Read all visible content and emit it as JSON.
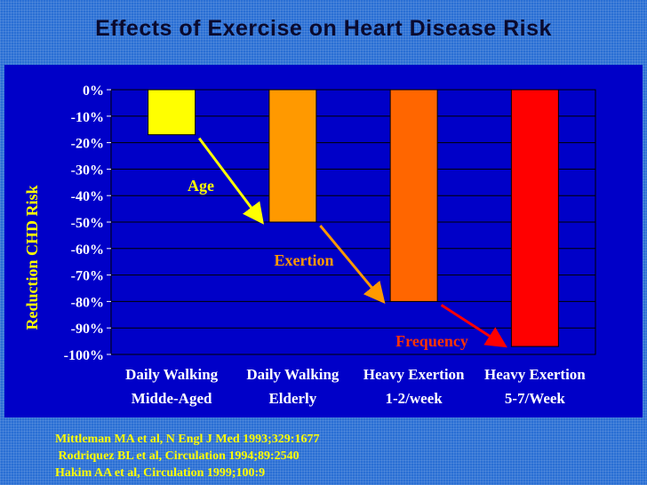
{
  "slide": {
    "title": "Effects of Exercise on Heart Disease Risk"
  },
  "chart_data": {
    "type": "bar",
    "title": "Effects of Exercise on Heart Disease Risk",
    "xlabel": "",
    "ylabel": "Reduction CHD Risk",
    "ylim": [
      -100,
      0
    ],
    "yticks": [
      "0%",
      "-10%",
      "-20%",
      "-30%",
      "-40%",
      "-50%",
      "-60%",
      "-70%",
      "-80%",
      "-90%",
      "-100%"
    ],
    "categories": [
      [
        "Daily Walking",
        "Midde-Aged"
      ],
      [
        "Daily Walking",
        "Elderly"
      ],
      [
        "Heavy Exertion",
        "1-2/week"
      ],
      [
        "Heavy Exertion",
        "5-7/Week"
      ]
    ],
    "values": [
      -17,
      -50,
      -80,
      -97
    ],
    "colors": [
      "#ffff00",
      "#ff9900",
      "#ff6600",
      "#ff0000"
    ],
    "annotations": [
      {
        "text": "Age",
        "color": "#ffff00"
      },
      {
        "text": "Exertion",
        "color": "#ff9900"
      },
      {
        "text": "Frequency",
        "color": "#ff3300"
      }
    ],
    "grid": true
  },
  "references": [
    "Mittleman MA et al, N Engl J Med 1993;329:1677",
    " Rodriquez BL et al, Circulation 1994;89:2540",
    "Hakim AA et al, Circulation 1999;100:9"
  ]
}
